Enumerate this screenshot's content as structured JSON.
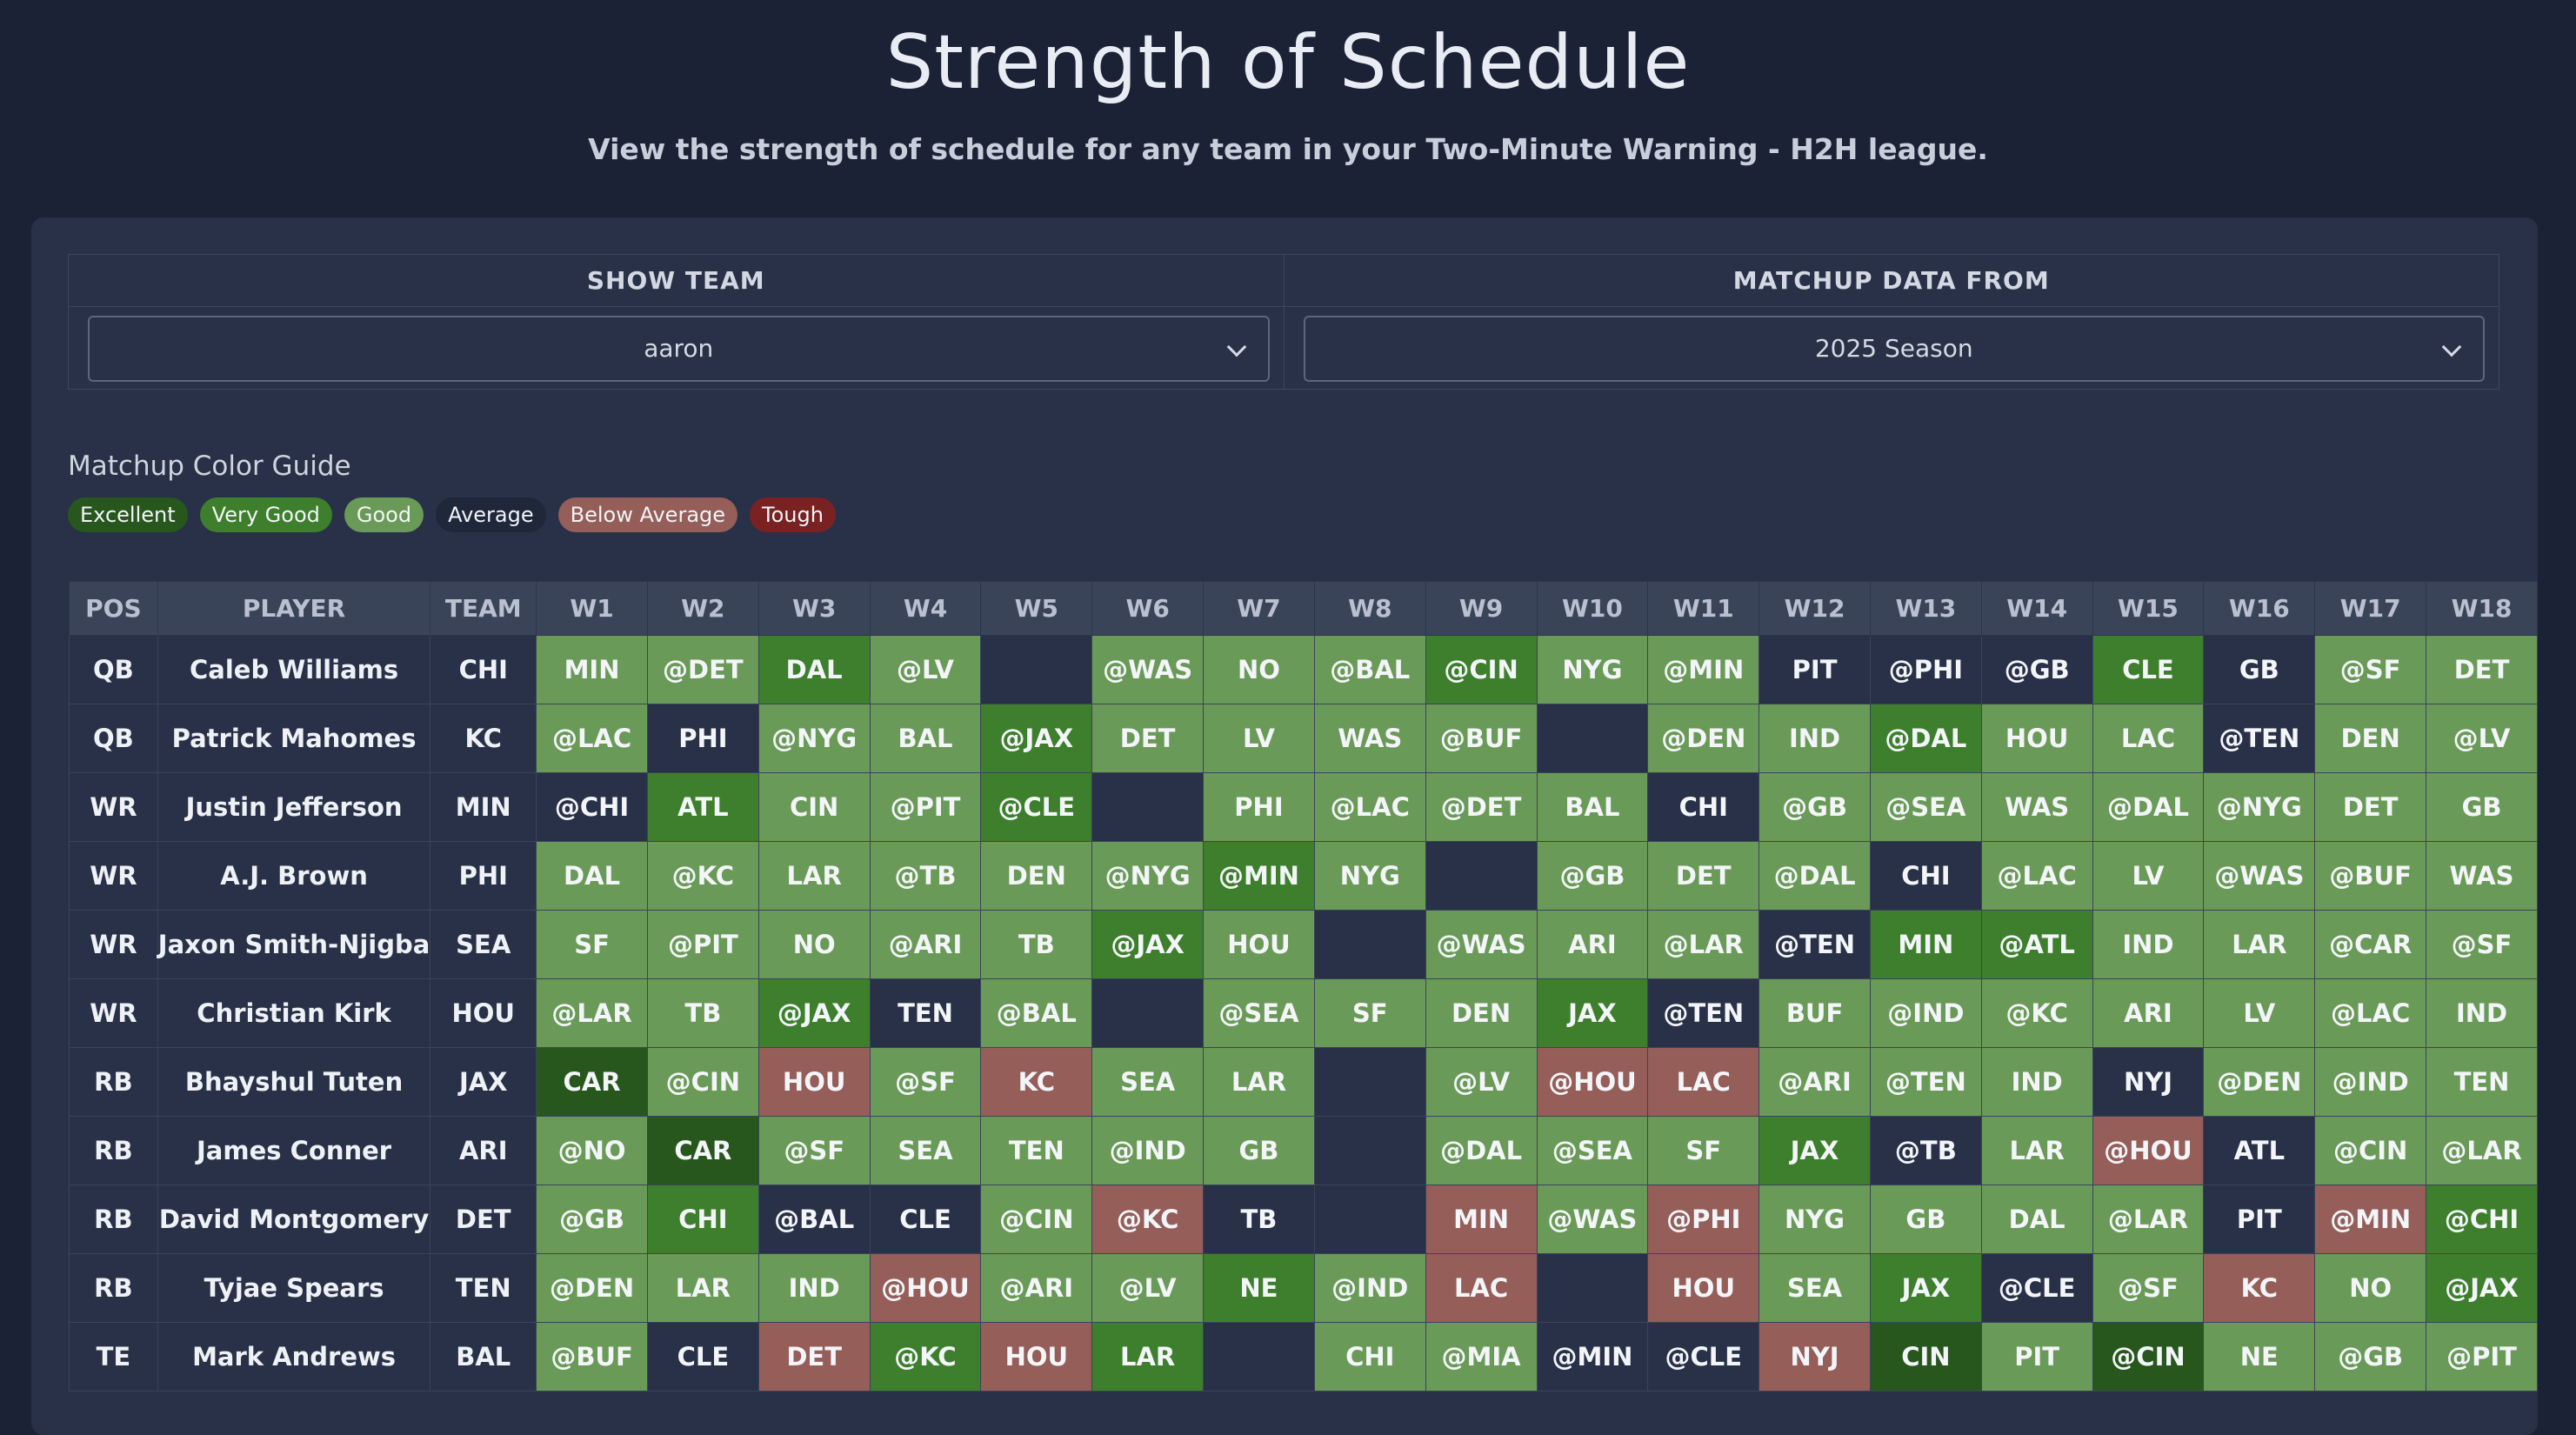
{
  "header": {
    "title": "Strength of Schedule",
    "subtitle": "View the strength of schedule for any team in your Two-Minute Warning - H2H league."
  },
  "filters": {
    "team_label": "SHOW TEAM",
    "team_value": "aaron",
    "data_label": "MATCHUP DATA FROM",
    "data_value": "2025 Season"
  },
  "legend": {
    "title": "Matchup Color Guide",
    "items": [
      {
        "label": "Excellent",
        "color": "#27571d"
      },
      {
        "label": "Very Good",
        "color": "#3d7f2c"
      },
      {
        "label": "Good",
        "color": "#6a9a57"
      },
      {
        "label": "Average",
        "color": "#283147"
      },
      {
        "label": "Below Average",
        "color": "#955e59"
      },
      {
        "label": "Tough",
        "color": "#7a2222"
      }
    ]
  },
  "table": {
    "columns": [
      "POS",
      "PLAYER",
      "TEAM",
      "W1",
      "W2",
      "W3",
      "W4",
      "W5",
      "W6",
      "W7",
      "W8",
      "W9",
      "W10",
      "W11",
      "W12",
      "W13",
      "W14",
      "W15",
      "W16",
      "W17",
      "W18"
    ],
    "rows": [
      {
        "pos": "QB",
        "player": "Caleb Williams",
        "team": "CHI",
        "weeks": [
          [
            "MIN",
            "g"
          ],
          [
            "@DET",
            "g"
          ],
          [
            "DAL",
            "v"
          ],
          [
            "@LV",
            "g"
          ],
          [
            "",
            "x"
          ],
          [
            "@WAS",
            "g"
          ],
          [
            "NO",
            "g"
          ],
          [
            "@BAL",
            "g"
          ],
          [
            "@CIN",
            "v"
          ],
          [
            "NYG",
            "g"
          ],
          [
            "@MIN",
            "g"
          ],
          [
            "PIT",
            "a"
          ],
          [
            "@PHI",
            "a"
          ],
          [
            "@GB",
            "a"
          ],
          [
            "CLE",
            "v"
          ],
          [
            "GB",
            "a"
          ],
          [
            "@SF",
            "g"
          ],
          [
            "DET",
            "g"
          ]
        ]
      },
      {
        "pos": "QB",
        "player": "Patrick Mahomes",
        "team": "KC",
        "weeks": [
          [
            "@LAC",
            "g"
          ],
          [
            "PHI",
            "a"
          ],
          [
            "@NYG",
            "g"
          ],
          [
            "BAL",
            "g"
          ],
          [
            "@JAX",
            "v"
          ],
          [
            "DET",
            "g"
          ],
          [
            "LV",
            "g"
          ],
          [
            "WAS",
            "g"
          ],
          [
            "@BUF",
            "g"
          ],
          [
            "",
            "x"
          ],
          [
            "@DEN",
            "g"
          ],
          [
            "IND",
            "g"
          ],
          [
            "@DAL",
            "v"
          ],
          [
            "HOU",
            "g"
          ],
          [
            "LAC",
            "g"
          ],
          [
            "@TEN",
            "a"
          ],
          [
            "DEN",
            "g"
          ],
          [
            "@LV",
            "g"
          ]
        ]
      },
      {
        "pos": "WR",
        "player": "Justin Jefferson",
        "team": "MIN",
        "weeks": [
          [
            "@CHI",
            "a"
          ],
          [
            "ATL",
            "v"
          ],
          [
            "CIN",
            "g"
          ],
          [
            "@PIT",
            "g"
          ],
          [
            "@CLE",
            "v"
          ],
          [
            "",
            "x"
          ],
          [
            "PHI",
            "g"
          ],
          [
            "@LAC",
            "g"
          ],
          [
            "@DET",
            "g"
          ],
          [
            "BAL",
            "g"
          ],
          [
            "CHI",
            "a"
          ],
          [
            "@GB",
            "g"
          ],
          [
            "@SEA",
            "g"
          ],
          [
            "WAS",
            "g"
          ],
          [
            "@DAL",
            "g"
          ],
          [
            "@NYG",
            "g"
          ],
          [
            "DET",
            "g"
          ],
          [
            "GB",
            "g"
          ]
        ]
      },
      {
        "pos": "WR",
        "player": "A.J. Brown",
        "team": "PHI",
        "weeks": [
          [
            "DAL",
            "g"
          ],
          [
            "@KC",
            "g"
          ],
          [
            "LAR",
            "g"
          ],
          [
            "@TB",
            "g"
          ],
          [
            "DEN",
            "g"
          ],
          [
            "@NYG",
            "g"
          ],
          [
            "@MIN",
            "v"
          ],
          [
            "NYG",
            "g"
          ],
          [
            "",
            "x"
          ],
          [
            "@GB",
            "g"
          ],
          [
            "DET",
            "g"
          ],
          [
            "@DAL",
            "g"
          ],
          [
            "CHI",
            "a"
          ],
          [
            "@LAC",
            "g"
          ],
          [
            "LV",
            "g"
          ],
          [
            "@WAS",
            "g"
          ],
          [
            "@BUF",
            "g"
          ],
          [
            "WAS",
            "g"
          ]
        ]
      },
      {
        "pos": "WR",
        "player": "Jaxon Smith-Njigba",
        "team": "SEA",
        "weeks": [
          [
            "SF",
            "g"
          ],
          [
            "@PIT",
            "g"
          ],
          [
            "NO",
            "g"
          ],
          [
            "@ARI",
            "g"
          ],
          [
            "TB",
            "g"
          ],
          [
            "@JAX",
            "v"
          ],
          [
            "HOU",
            "g"
          ],
          [
            "",
            "x"
          ],
          [
            "@WAS",
            "g"
          ],
          [
            "ARI",
            "g"
          ],
          [
            "@LAR",
            "g"
          ],
          [
            "@TEN",
            "a"
          ],
          [
            "MIN",
            "v"
          ],
          [
            "@ATL",
            "v"
          ],
          [
            "IND",
            "g"
          ],
          [
            "LAR",
            "g"
          ],
          [
            "@CAR",
            "g"
          ],
          [
            "@SF",
            "g"
          ]
        ]
      },
      {
        "pos": "WR",
        "player": "Christian Kirk",
        "team": "HOU",
        "weeks": [
          [
            "@LAR",
            "g"
          ],
          [
            "TB",
            "g"
          ],
          [
            "@JAX",
            "v"
          ],
          [
            "TEN",
            "a"
          ],
          [
            "@BAL",
            "g"
          ],
          [
            "",
            "x"
          ],
          [
            "@SEA",
            "g"
          ],
          [
            "SF",
            "g"
          ],
          [
            "DEN",
            "g"
          ],
          [
            "JAX",
            "v"
          ],
          [
            "@TEN",
            "a"
          ],
          [
            "BUF",
            "g"
          ],
          [
            "@IND",
            "g"
          ],
          [
            "@KC",
            "g"
          ],
          [
            "ARI",
            "g"
          ],
          [
            "LV",
            "g"
          ],
          [
            "@LAC",
            "g"
          ],
          [
            "IND",
            "g"
          ]
        ]
      },
      {
        "pos": "RB",
        "player": "Bhayshul Tuten",
        "team": "JAX",
        "weeks": [
          [
            "CAR",
            "e"
          ],
          [
            "@CIN",
            "g"
          ],
          [
            "HOU",
            "b"
          ],
          [
            "@SF",
            "g"
          ],
          [
            "KC",
            "b"
          ],
          [
            "SEA",
            "g"
          ],
          [
            "LAR",
            "g"
          ],
          [
            "",
            "x"
          ],
          [
            "@LV",
            "g"
          ],
          [
            "@HOU",
            "b"
          ],
          [
            "LAC",
            "b"
          ],
          [
            "@ARI",
            "g"
          ],
          [
            "@TEN",
            "g"
          ],
          [
            "IND",
            "g"
          ],
          [
            "NYJ",
            "a"
          ],
          [
            "@DEN",
            "g"
          ],
          [
            "@IND",
            "g"
          ],
          [
            "TEN",
            "g"
          ]
        ]
      },
      {
        "pos": "RB",
        "player": "James Conner",
        "team": "ARI",
        "weeks": [
          [
            "@NO",
            "g"
          ],
          [
            "CAR",
            "e"
          ],
          [
            "@SF",
            "g"
          ],
          [
            "SEA",
            "g"
          ],
          [
            "TEN",
            "g"
          ],
          [
            "@IND",
            "g"
          ],
          [
            "GB",
            "g"
          ],
          [
            "",
            "x"
          ],
          [
            "@DAL",
            "g"
          ],
          [
            "@SEA",
            "g"
          ],
          [
            "SF",
            "g"
          ],
          [
            "JAX",
            "v"
          ],
          [
            "@TB",
            "a"
          ],
          [
            "LAR",
            "g"
          ],
          [
            "@HOU",
            "b"
          ],
          [
            "ATL",
            "a"
          ],
          [
            "@CIN",
            "g"
          ],
          [
            "@LAR",
            "g"
          ]
        ]
      },
      {
        "pos": "RB",
        "player": "David Montgomery",
        "team": "DET",
        "weeks": [
          [
            "@GB",
            "g"
          ],
          [
            "CHI",
            "v"
          ],
          [
            "@BAL",
            "a"
          ],
          [
            "CLE",
            "a"
          ],
          [
            "@CIN",
            "g"
          ],
          [
            "@KC",
            "b"
          ],
          [
            "TB",
            "a"
          ],
          [
            "",
            "x"
          ],
          [
            "MIN",
            "b"
          ],
          [
            "@WAS",
            "g"
          ],
          [
            "@PHI",
            "b"
          ],
          [
            "NYG",
            "g"
          ],
          [
            "GB",
            "g"
          ],
          [
            "DAL",
            "g"
          ],
          [
            "@LAR",
            "g"
          ],
          [
            "PIT",
            "a"
          ],
          [
            "@MIN",
            "b"
          ],
          [
            "@CHI",
            "v"
          ]
        ]
      },
      {
        "pos": "RB",
        "player": "Tyjae Spears",
        "team": "TEN",
        "weeks": [
          [
            "@DEN",
            "g"
          ],
          [
            "LAR",
            "g"
          ],
          [
            "IND",
            "g"
          ],
          [
            "@HOU",
            "b"
          ],
          [
            "@ARI",
            "g"
          ],
          [
            "@LV",
            "g"
          ],
          [
            "NE",
            "v"
          ],
          [
            "@IND",
            "g"
          ],
          [
            "LAC",
            "b"
          ],
          [
            "",
            "x"
          ],
          [
            "HOU",
            "b"
          ],
          [
            "SEA",
            "g"
          ],
          [
            "JAX",
            "v"
          ],
          [
            "@CLE",
            "a"
          ],
          [
            "@SF",
            "g"
          ],
          [
            "KC",
            "b"
          ],
          [
            "NO",
            "g"
          ],
          [
            "@JAX",
            "v"
          ]
        ]
      },
      {
        "pos": "TE",
        "player": "Mark Andrews",
        "team": "BAL",
        "weeks": [
          [
            "@BUF",
            "g"
          ],
          [
            "CLE",
            "a"
          ],
          [
            "DET",
            "b"
          ],
          [
            "@KC",
            "v"
          ],
          [
            "HOU",
            "b"
          ],
          [
            "LAR",
            "v"
          ],
          [
            "",
            "x"
          ],
          [
            "CHI",
            "g"
          ],
          [
            "@MIA",
            "g"
          ],
          [
            "@MIN",
            "a"
          ],
          [
            "@CLE",
            "a"
          ],
          [
            "NYJ",
            "b"
          ],
          [
            "CIN",
            "e"
          ],
          [
            "PIT",
            "g"
          ],
          [
            "@CIN",
            "e"
          ],
          [
            "NE",
            "g"
          ],
          [
            "@GB",
            "g"
          ],
          [
            "@PIT",
            "g"
          ]
        ]
      }
    ]
  }
}
